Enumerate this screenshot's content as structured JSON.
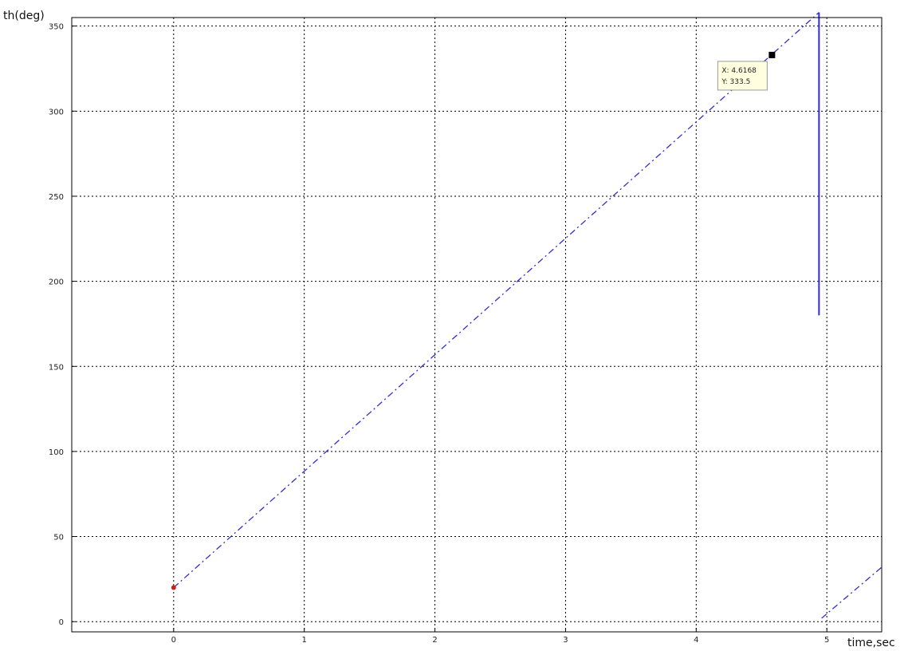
{
  "chart_data": {
    "type": "line",
    "title": "",
    "xlabel": "time,sec",
    "ylabel": "th(deg)",
    "xlim": [
      -0.78,
      5.42
    ],
    "ylim": [
      -6,
      355
    ],
    "xticks": [
      0,
      1,
      2,
      3,
      4,
      5
    ],
    "yticks": [
      0,
      50,
      100,
      150,
      200,
      250,
      300,
      350
    ],
    "ytick_labels": [
      "0",
      "50",
      "100",
      "150",
      "200",
      "250",
      "300",
      "350"
    ],
    "grid": true,
    "series": [
      {
        "style": "dash-dot",
        "color": "#3030c8",
        "x": [
          0,
          4.94
        ],
        "y": [
          20,
          358
        ]
      },
      {
        "style": "solid",
        "color": "#3030c8",
        "x": [
          4.94,
          4.94
        ],
        "y": [
          180,
          358
        ]
      },
      {
        "style": "dash-dot",
        "color": "#3030c8",
        "x": [
          4.96,
          5.42
        ],
        "y": [
          2,
          32
        ]
      }
    ],
    "start_marker": {
      "x": 0,
      "y": 20,
      "color": "#cc2020"
    },
    "datatip": {
      "x": 4.58,
      "y": 333,
      "lines": [
        "X: 4.6168",
        "Y: 333.5"
      ]
    }
  }
}
